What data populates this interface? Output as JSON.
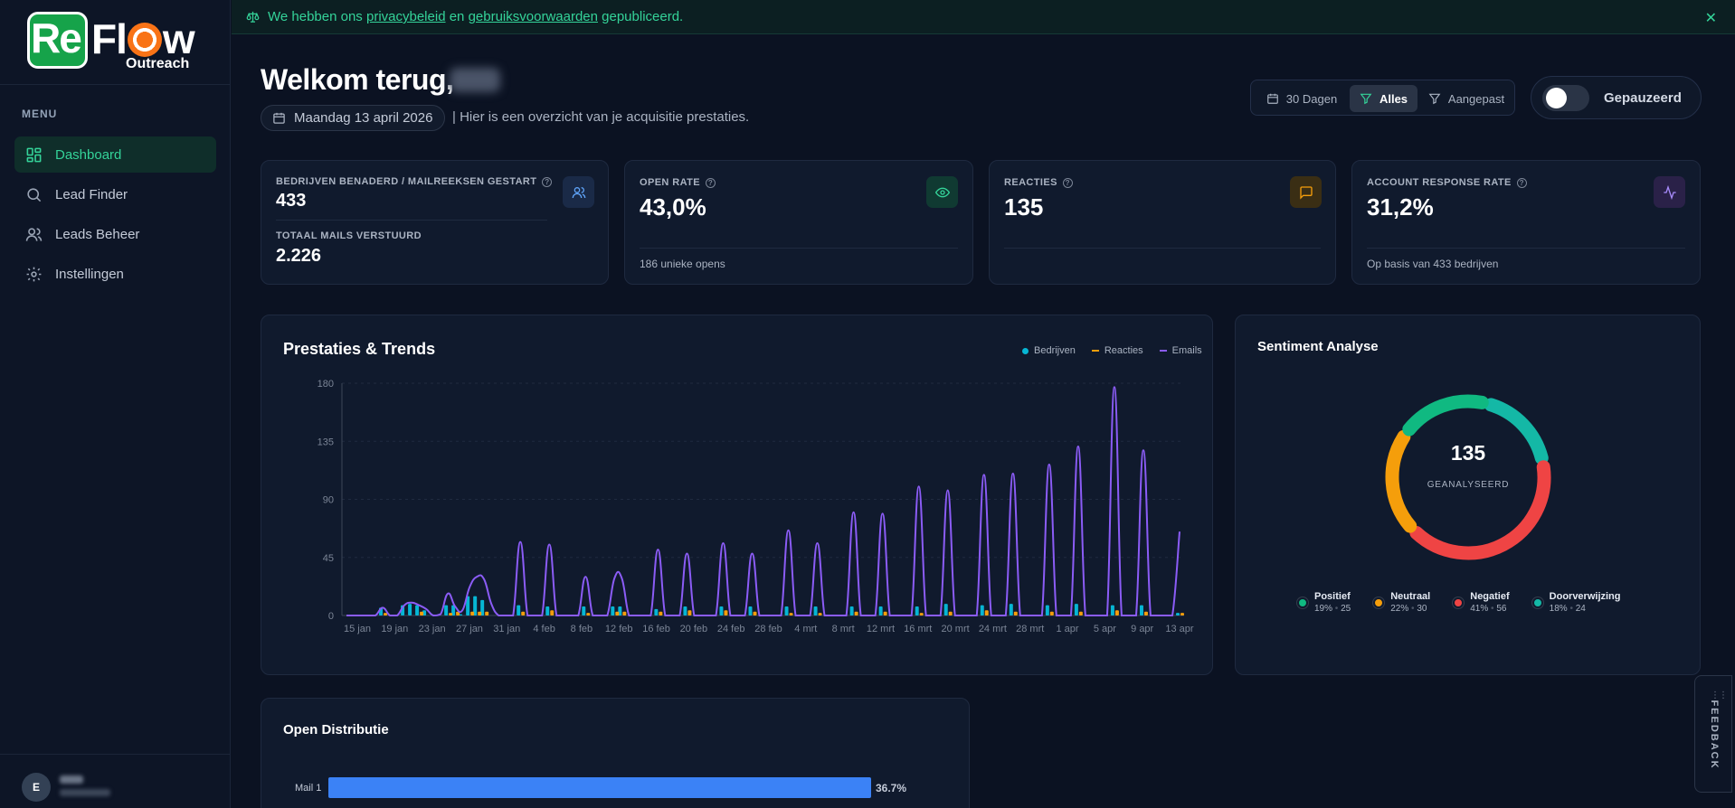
{
  "brand": {
    "logo_re": "Re",
    "logo_flow_f": "F",
    "logo_flow_l": "l",
    "logo_flow_w": "w",
    "logo_sub": "Outreach",
    "logo_color": "#16a34a",
    "accent_orange": "#f97316"
  },
  "banner": {
    "text_before": "We hebben ons",
    "link1": "privacybeleid",
    "text_mid": "en",
    "link2": "gebruiksvoorwaarden",
    "text_after": "gepubliceerd.",
    "icon": "scale-icon",
    "close": "✕"
  },
  "sidebar": {
    "menu_label": "MENU",
    "items": [
      {
        "label": "Dashboard",
        "icon": "dashboard-icon",
        "active": true
      },
      {
        "label": "Lead Finder",
        "icon": "search-icon",
        "active": false
      },
      {
        "label": "Leads Beheer",
        "icon": "users-icon",
        "active": false
      },
      {
        "label": "Instellingen",
        "icon": "gear-icon",
        "active": false
      }
    ],
    "user_initial": "E"
  },
  "header": {
    "welcome": "Welkom terug,",
    "date": "Maandag 13 april 2026",
    "subtitle": "| Hier is een overzicht van je acquisitie prestaties.",
    "filters": {
      "days": "30 Dagen",
      "all": "Alles",
      "custom": "Aangepast"
    },
    "toggle_label": "Gepauzeerd"
  },
  "kpis": {
    "companies_label": "BEDRIJVEN BENADERD / MAILREEKSEN GESTART",
    "companies_value": "433",
    "total_mails_label": "TOTAAL MAILS VERSTUURD",
    "total_mails_value": "2.226",
    "open_rate_label": "OPEN RATE",
    "open_rate_value": "43,0%",
    "open_rate_note": "186 unieke opens",
    "reactions_label": "REACTIES",
    "reactions_value": "135",
    "account_rate_label": "ACCOUNT RESPONSE RATE",
    "account_rate_value": "31,2%",
    "account_rate_note": "Op basis van 433 bedrijven"
  },
  "trends": {
    "title": "Prestaties & Trends",
    "legend": [
      "Bedrijven",
      "Reacties",
      "Emails"
    ],
    "colors": {
      "bedrijven": "#06b6d4",
      "reacties": "#f59e0b",
      "emails": "#8b5cf6"
    }
  },
  "chart_data": {
    "type": "line",
    "ylim": [
      0,
      180
    ],
    "yticks": [
      0,
      45,
      90,
      135,
      180
    ],
    "xtick_labels": [
      "15 jan",
      "19 jan",
      "23 jan",
      "27 jan",
      "31 jan",
      "4 feb",
      "8 feb",
      "12 feb",
      "16 feb",
      "20 feb",
      "24 feb",
      "28 feb",
      "4 mrt",
      "8 mrt",
      "12 mrt",
      "16 mrt",
      "20 mrt",
      "24 mrt",
      "28 mrt",
      "1 apr",
      "5 apr",
      "9 apr",
      "13 apr"
    ],
    "series": [
      {
        "name": "Emails",
        "type": "line",
        "values": [
          0,
          0,
          0,
          0,
          0,
          6,
          0,
          0,
          8,
          10,
          8,
          5,
          0,
          1,
          17,
          7,
          4,
          22,
          30,
          28,
          9,
          0,
          0,
          0,
          57,
          0,
          0,
          0,
          55,
          0,
          0,
          0,
          0,
          30,
          0,
          0,
          0,
          29,
          29,
          0,
          0,
          0,
          0,
          51,
          0,
          0,
          0,
          48,
          0,
          0,
          0,
          0,
          56,
          0,
          0,
          0,
          48,
          0,
          0,
          0,
          0,
          66,
          0,
          0,
          0,
          56,
          0,
          0,
          0,
          0,
          80,
          0,
          0,
          0,
          79,
          0,
          0,
          0,
          0,
          100,
          0,
          0,
          0,
          97,
          0,
          0,
          0,
          0,
          109,
          0,
          0,
          0,
          110,
          0,
          0,
          0,
          0,
          117,
          0,
          0,
          0,
          131,
          0,
          0,
          0,
          0,
          177,
          0,
          0,
          0,
          128,
          0,
          0,
          0,
          0,
          65
        ]
      },
      {
        "name": "Bedrijven",
        "type": "bar",
        "values": [
          0,
          0,
          0,
          0,
          0,
          6,
          0,
          0,
          8,
          9,
          8,
          4,
          0,
          0,
          8,
          8,
          1,
          15,
          15,
          12,
          0,
          0,
          0,
          0,
          8,
          0,
          0,
          0,
          7,
          0,
          0,
          0,
          0,
          7,
          0,
          0,
          0,
          7,
          7,
          0,
          0,
          0,
          0,
          5,
          0,
          0,
          0,
          7,
          0,
          0,
          0,
          0,
          7,
          0,
          0,
          0,
          7,
          0,
          0,
          0,
          0,
          7,
          0,
          0,
          0,
          7,
          0,
          0,
          0,
          0,
          7,
          0,
          0,
          0,
          7,
          0,
          0,
          0,
          0,
          7,
          0,
          0,
          0,
          9,
          0,
          0,
          0,
          0,
          8,
          0,
          0,
          0,
          9,
          0,
          0,
          0,
          0,
          8,
          0,
          0,
          0,
          9,
          0,
          0,
          0,
          0,
          8,
          0,
          0,
          0,
          8,
          0,
          0,
          0,
          0,
          2
        ]
      },
      {
        "name": "Reacties",
        "type": "bar",
        "values": [
          0,
          0,
          0,
          0,
          0,
          2,
          0,
          0,
          0,
          0,
          3,
          0,
          0,
          0,
          2,
          3,
          0,
          3,
          3,
          3,
          0,
          0,
          0,
          0,
          3,
          0,
          0,
          0,
          4,
          0,
          0,
          0,
          0,
          2,
          0,
          0,
          0,
          3,
          3,
          0,
          0,
          0,
          0,
          3,
          0,
          0,
          0,
          4,
          0,
          0,
          0,
          0,
          4,
          0,
          0,
          0,
          3,
          0,
          0,
          0,
          0,
          2,
          0,
          0,
          0,
          2,
          0,
          0,
          0,
          0,
          3,
          0,
          0,
          0,
          3,
          0,
          0,
          0,
          0,
          2,
          0,
          0,
          0,
          3,
          0,
          0,
          0,
          0,
          4,
          0,
          0,
          0,
          3,
          0,
          0,
          0,
          0,
          3,
          0,
          0,
          0,
          3,
          0,
          0,
          0,
          0,
          4,
          0,
          0,
          0,
          3,
          0,
          0,
          0,
          0,
          2
        ]
      }
    ]
  },
  "sentiment": {
    "title": "Sentiment Analyse",
    "total": "135",
    "total_label": "GEANALYSEERD",
    "segments": [
      {
        "name": "Positief",
        "pct": "19%",
        "count": "25",
        "value": 19,
        "color": "#10b981"
      },
      {
        "name": "Neutraal",
        "pct": "22%",
        "count": "30",
        "value": 22,
        "color": "#f59e0b"
      },
      {
        "name": "Negatief",
        "pct": "41%",
        "count": "56",
        "value": 41,
        "color": "#ef4444"
      },
      {
        "name": "Doorverwijzing",
        "pct": "18%",
        "count": "24",
        "value": 18,
        "color": "#14b8a6"
      }
    ],
    "bullet": "•"
  },
  "open_distribution": {
    "title": "Open Distributie",
    "rows": [
      {
        "label": "Mail 1",
        "value_text": "36.7%",
        "value": 36.7
      }
    ]
  },
  "feedback": "FEEDBACK"
}
